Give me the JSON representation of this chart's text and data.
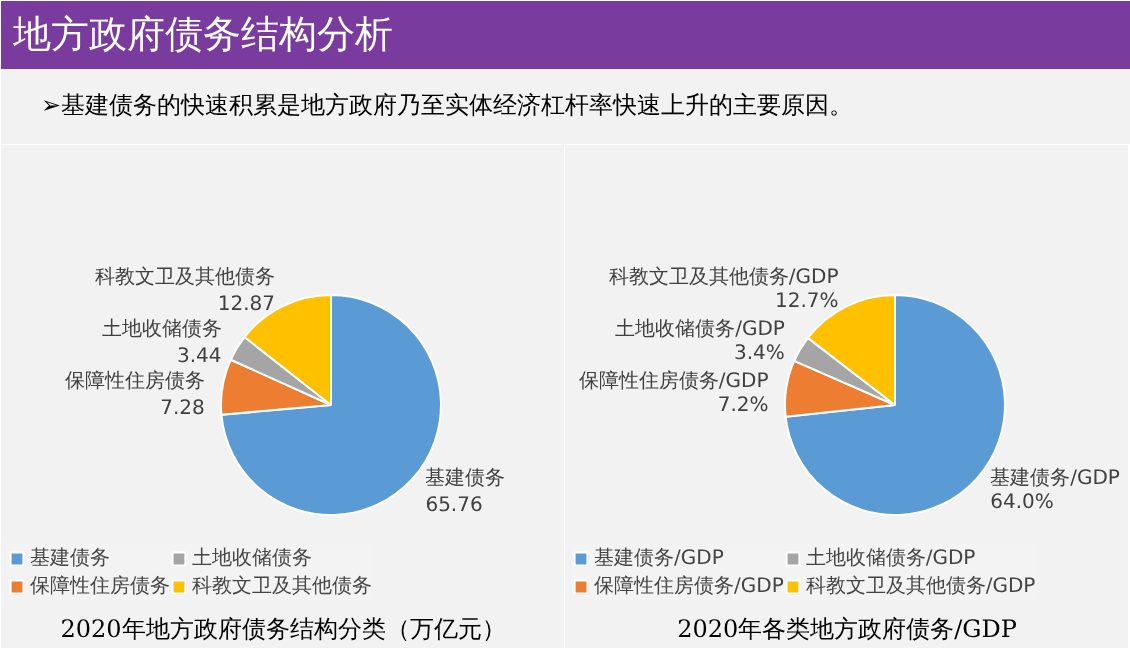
{
  "chart_data": [
    {
      "type": "other",
      "title": "地方政府债务结构分析",
      "subtitle": "➢基建债务的快速积累是地方政府乃至实体经济杠杆率快速上升的主要原因。"
    },
    {
      "type": "pie",
      "title": "2020年地方政府债务结构分类（万亿元）",
      "categories": [
        "基建债务",
        "保障性住房债务",
        "土地收储债务",
        "科教文卫及其他债务"
      ],
      "values": [
        65.76,
        7.28,
        3.44,
        12.87
      ],
      "value_labels": [
        "65.76",
        "7.28",
        "3.44",
        "12.87"
      ],
      "colors": [
        "#5b9bd5",
        "#ed7d31",
        "#a5a5a5",
        "#ffc000"
      ],
      "legend": "bottom"
    },
    {
      "type": "pie",
      "title": "2020年各类地方政府债务/GDP",
      "categories": [
        "基建债务/GDP",
        "保障性住房债务/GDP",
        "土地收储债务/GDP",
        "科教文卫及其他债务/GDP"
      ],
      "values": [
        64.0,
        7.2,
        3.4,
        12.7
      ],
      "value_labels": [
        "64.0%",
        "7.2%",
        "3.4%",
        "12.7%"
      ],
      "colors": [
        "#5b9bd5",
        "#ed7d31",
        "#a5a5a5",
        "#ffc000"
      ],
      "legend": "bottom"
    }
  ]
}
